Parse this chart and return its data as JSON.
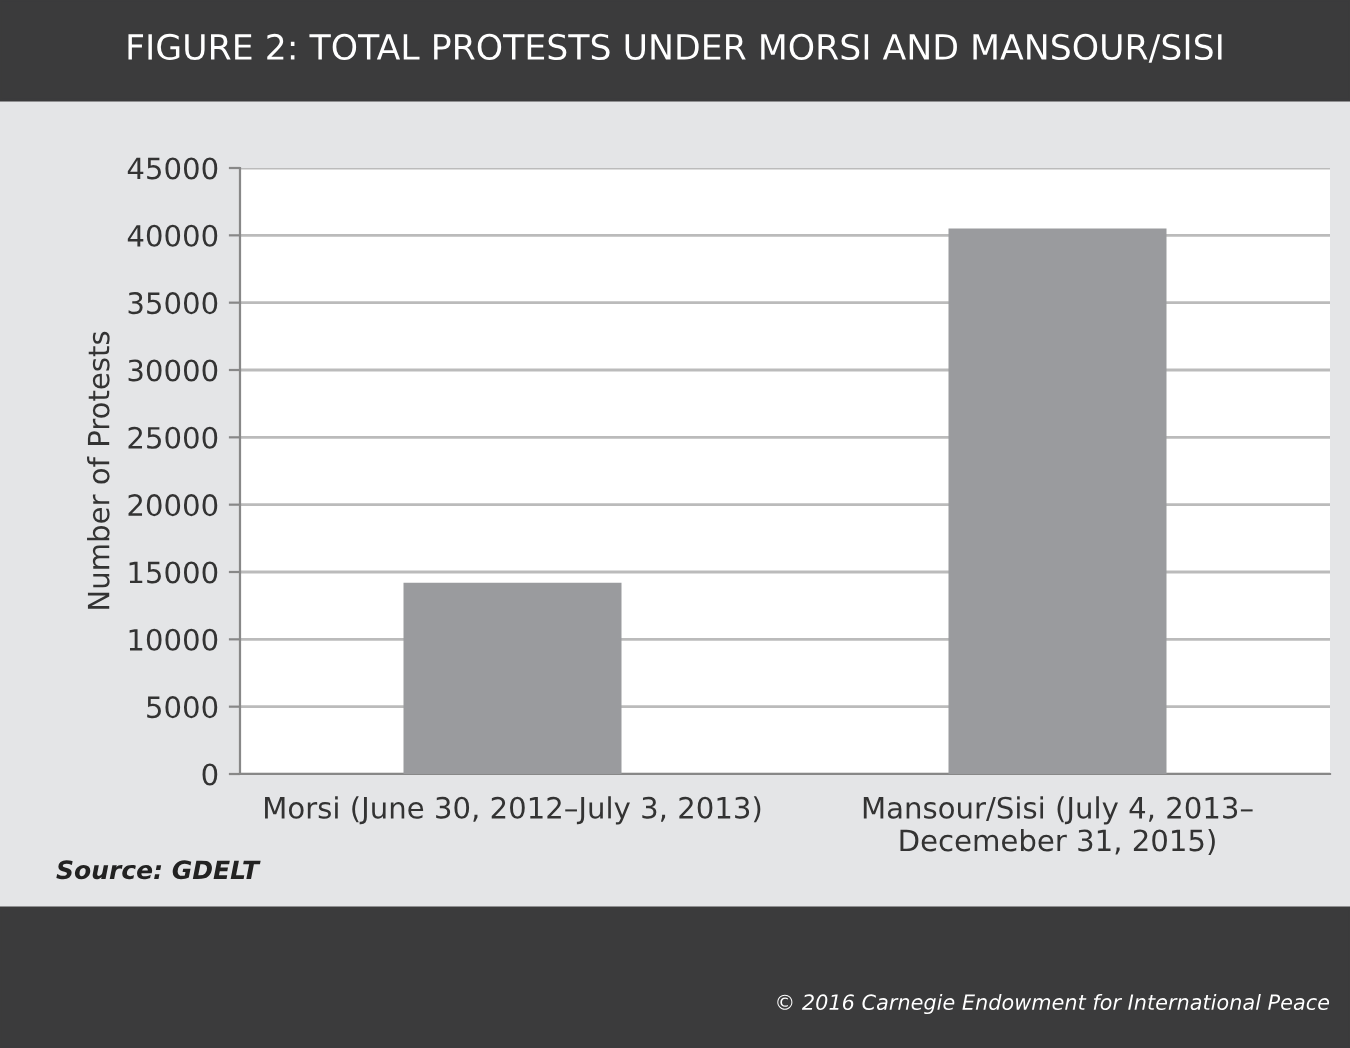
{
  "chart_data": {
    "type": "bar",
    "title": "FIGURE 2: TOTAL PROTESTS UNDER MORSI AND MANSOUR/SISI",
    "ylabel": "Number of Protests",
    "categories": [
      "Morsi (June 30, 2012–July 3, 2013)",
      "Mansour/Sisi (July 4, 2013–\nDecemeber 31, 2015)"
    ],
    "values": [
      14200,
      40500
    ],
    "color": "#9a9b9e",
    "ylim": [
      0,
      45000
    ],
    "yticks": [
      0,
      5000,
      10000,
      15000,
      20000,
      25000,
      30000,
      35000,
      40000,
      45000
    ],
    "grid": "y",
    "annotations": [
      "Source: GDELT",
      "© 2016 Carnegie Endowment for International Peace"
    ]
  }
}
